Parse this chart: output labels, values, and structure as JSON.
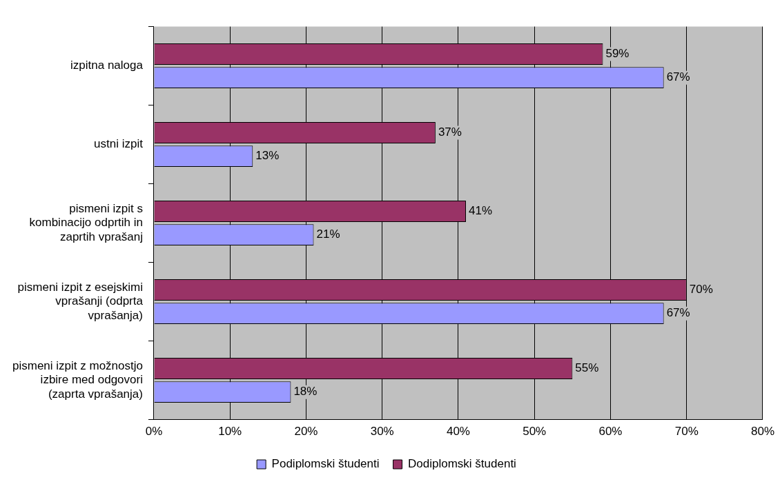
{
  "chart_data": {
    "type": "bar",
    "orientation": "horizontal",
    "categories": [
      "izpitna naloga",
      "ustni izpit",
      "pismeni izpit s kombinacijo odprtih in zaprtih vprašanj",
      "pismeni izpit z esejskimi vprašanji (odprta vprašanja)",
      "pismeni izpit z možnostjo izbire med odgovori (zaprta vprašanja)"
    ],
    "series": [
      {
        "name": "Podiplomski študenti",
        "color": "#9999ff",
        "values": [
          67,
          13,
          21,
          67,
          18
        ],
        "value_labels": [
          "67%",
          "13%",
          "21%",
          "67%",
          "18%"
        ]
      },
      {
        "name": "Dodiplomski študenti",
        "color": "#993366",
        "values": [
          59,
          37,
          41,
          70,
          55
        ],
        "value_labels": [
          "59%",
          "37%",
          "41%",
          "70%",
          "55%"
        ]
      }
    ],
    "xlim": [
      0,
      80
    ],
    "xticks": [
      {
        "value": 0,
        "label": "0%"
      },
      {
        "value": 10,
        "label": "10%"
      },
      {
        "value": 20,
        "label": "20%"
      },
      {
        "value": 30,
        "label": "30%"
      },
      {
        "value": 40,
        "label": "40%"
      },
      {
        "value": 50,
        "label": "50%"
      },
      {
        "value": 60,
        "label": "60%"
      },
      {
        "value": 70,
        "label": "70%"
      },
      {
        "value": 80,
        "label": "80%"
      }
    ],
    "grid": "x",
    "legend": "bottom"
  }
}
